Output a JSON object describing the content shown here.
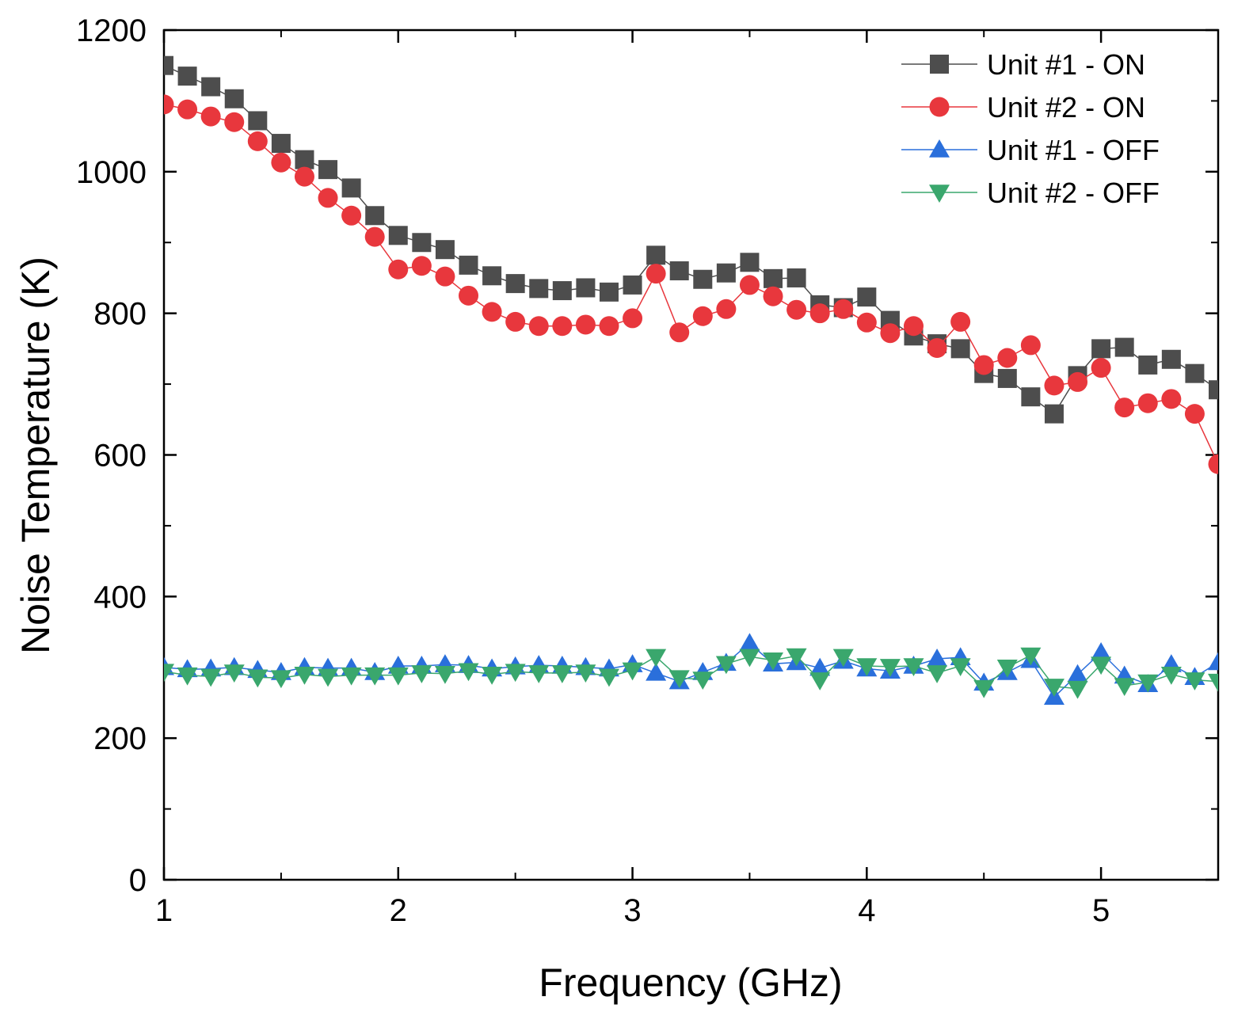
{
  "chart_data": {
    "type": "line",
    "title": "",
    "xlabel": "Frequency (GHz)",
    "ylabel": "Noise Temperature (K)",
    "xlim": [
      1,
      5.5
    ],
    "ylim": [
      0,
      1200
    ],
    "xticks": [
      1,
      2,
      3,
      4,
      5
    ],
    "yticks": [
      0,
      200,
      400,
      600,
      800,
      1000,
      1200
    ],
    "xtick_labels": [
      "1",
      "2",
      "3",
      "4",
      "5"
    ],
    "ytick_labels": [
      "0",
      "200",
      "400",
      "600",
      "800",
      "1000",
      "1200"
    ],
    "legend_position": "top-right",
    "grid": false,
    "x": [
      1.0,
      1.1,
      1.2,
      1.3,
      1.4,
      1.5,
      1.6,
      1.7,
      1.8,
      1.9,
      2.0,
      2.1,
      2.2,
      2.3,
      2.4,
      2.5,
      2.6,
      2.7,
      2.8,
      2.9,
      3.0,
      3.1,
      3.2,
      3.3,
      3.4,
      3.5,
      3.6,
      3.7,
      3.8,
      3.9,
      4.0,
      4.1,
      4.2,
      4.3,
      4.4,
      4.5,
      4.6,
      4.7,
      4.8,
      4.9,
      5.0,
      5.1,
      5.2,
      5.3,
      5.4,
      5.5
    ],
    "series": [
      {
        "name": "Unit #1 - ON",
        "color": "#4d4d4d",
        "marker": "square",
        "values": [
          1150,
          1135,
          1120,
          1103,
          1072,
          1040,
          1017,
          1003,
          977,
          938,
          910,
          900,
          890,
          868,
          853,
          842,
          835,
          832,
          836,
          830,
          840,
          882,
          860,
          848,
          857,
          872,
          849,
          850,
          812,
          808,
          823,
          790,
          768,
          757,
          750,
          715,
          708,
          682,
          658,
          712,
          750,
          752,
          727,
          735,
          715,
          692
        ]
      },
      {
        "name": "Unit #2 - ON",
        "color": "#e8373d",
        "marker": "circle",
        "values": [
          1095,
          1088,
          1078,
          1070,
          1043,
          1013,
          993,
          963,
          938,
          908,
          862,
          867,
          852,
          825,
          802,
          788,
          782,
          782,
          784,
          782,
          793,
          856,
          773,
          796,
          806,
          840,
          824,
          805,
          800,
          806,
          787,
          772,
          782,
          751,
          788,
          727,
          737,
          755,
          698,
          703,
          723,
          667,
          673,
          679,
          658,
          587
        ]
      },
      {
        "name": "Unit #1 - OFF",
        "color": "#2a6fdb",
        "marker": "triangle-up",
        "values": [
          300,
          297,
          298,
          300,
          296,
          293,
          300,
          299,
          299,
          293,
          302,
          302,
          304,
          303,
          298,
          301,
          303,
          302,
          300,
          298,
          304,
          292,
          280,
          293,
          306,
          334,
          305,
          307,
          299,
          309,
          298,
          295,
          302,
          312,
          314,
          278,
          293,
          310,
          258,
          290,
          321,
          288,
          276,
          304,
          286,
          307
        ]
      },
      {
        "name": "Unit #2 - OFF",
        "color": "#3aa76d",
        "marker": "triangle-down",
        "values": [
          294,
          289,
          287,
          293,
          286,
          285,
          290,
          287,
          289,
          289,
          289,
          292,
          291,
          295,
          290,
          294,
          292,
          292,
          293,
          287,
          296,
          315,
          285,
          283,
          305,
          315,
          310,
          316,
          282,
          315,
          302,
          301,
          302,
          292,
          302,
          271,
          300,
          317,
          273,
          270,
          304,
          274,
          279,
          290,
          282,
          280
        ]
      }
    ]
  }
}
